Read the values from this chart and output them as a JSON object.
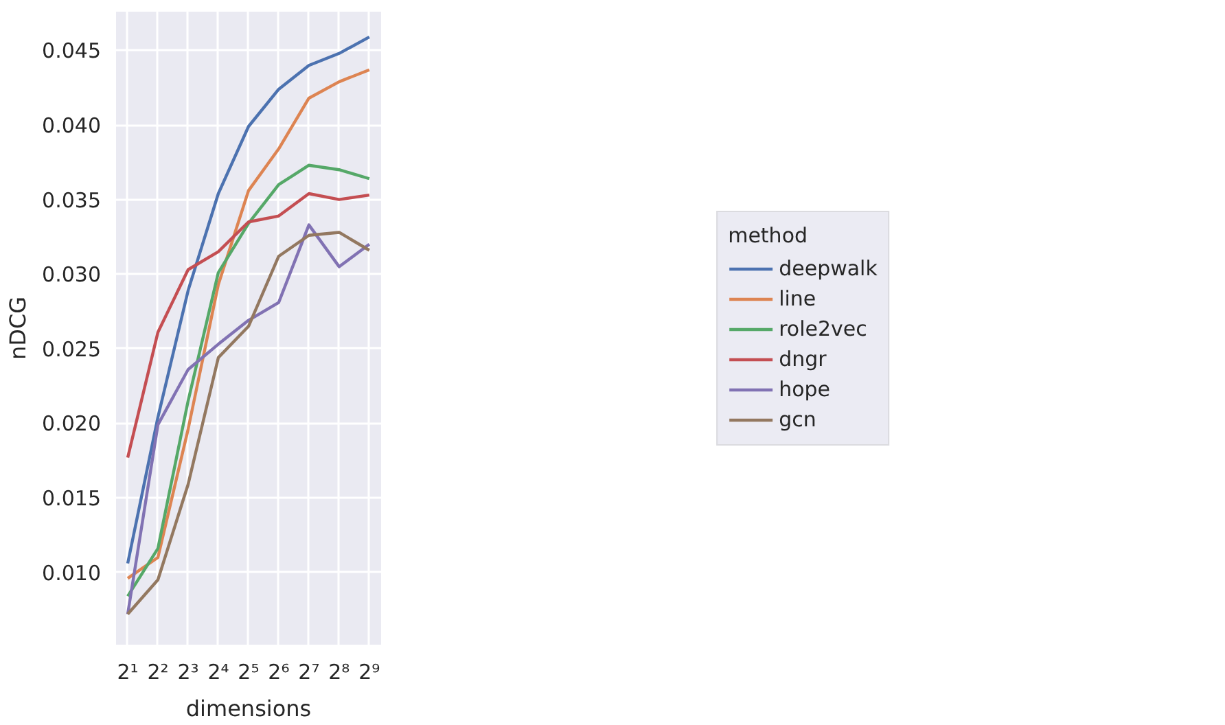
{
  "chart_data": {
    "type": "line",
    "xlabel": "dimensions",
    "ylabel": "nDCG",
    "legend_title": "method",
    "x": [
      2,
      4,
      8,
      16,
      32,
      64,
      128,
      256,
      512
    ],
    "series": [
      {
        "name": "deepwalk",
        "color": "#4c72b0",
        "values": [
          0.0106,
          0.0204,
          0.0289,
          0.0354,
          0.0399,
          0.0424,
          0.044,
          0.0448,
          0.0459
        ]
      },
      {
        "name": "line",
        "color": "#dd8452",
        "values": [
          0.0096,
          0.011,
          0.0196,
          0.0293,
          0.0356,
          0.0384,
          0.0418,
          0.0429,
          0.0437
        ]
      },
      {
        "name": "role2vec",
        "color": "#55a868",
        "values": [
          0.0084,
          0.0116,
          0.0215,
          0.0301,
          0.0334,
          0.036,
          0.0373,
          0.037,
          0.0364
        ]
      },
      {
        "name": "dngr",
        "color": "#c44e52",
        "values": [
          0.0177,
          0.0261,
          0.0303,
          0.0315,
          0.0335,
          0.0339,
          0.0354,
          0.035,
          0.0353
        ]
      },
      {
        "name": "hope",
        "color": "#8172b3",
        "values": [
          0.0072,
          0.0199,
          0.0236,
          0.0253,
          0.0269,
          0.0281,
          0.0333,
          0.0305,
          0.032
        ]
      },
      {
        "name": "gcn",
        "color": "#937860",
        "values": [
          0.0072,
          0.0095,
          0.0159,
          0.0244,
          0.0265,
          0.0312,
          0.0326,
          0.0328,
          0.0316
        ]
      }
    ],
    "log": "x",
    "xlim": [
      1.53,
      671
    ],
    "xticks": [
      {
        "value": 2,
        "label": "2¹"
      },
      {
        "value": 4,
        "label": "2²"
      },
      {
        "value": 8,
        "label": "2³"
      },
      {
        "value": 16,
        "label": "2⁴"
      },
      {
        "value": 32,
        "label": "2⁵"
      },
      {
        "value": 64,
        "label": "2⁶"
      },
      {
        "value": 128,
        "label": "2⁷"
      },
      {
        "value": 256,
        "label": "2⁸"
      },
      {
        "value": 512,
        "label": "2⁹"
      }
    ],
    "ylim": [
      0.00515,
      0.0476
    ],
    "yticks": [
      {
        "value": 0.01,
        "label": "0.010"
      },
      {
        "value": 0.015,
        "label": "0.015"
      },
      {
        "value": 0.02,
        "label": "0.020"
      },
      {
        "value": 0.025,
        "label": "0.025"
      },
      {
        "value": 0.03,
        "label": "0.030"
      },
      {
        "value": 0.035,
        "label": "0.035"
      },
      {
        "value": 0.04,
        "label": "0.040"
      },
      {
        "value": 0.045,
        "label": "0.045"
      }
    ],
    "grid": true,
    "legend": "right",
    "marker": "none",
    "line_style": "solid"
  }
}
